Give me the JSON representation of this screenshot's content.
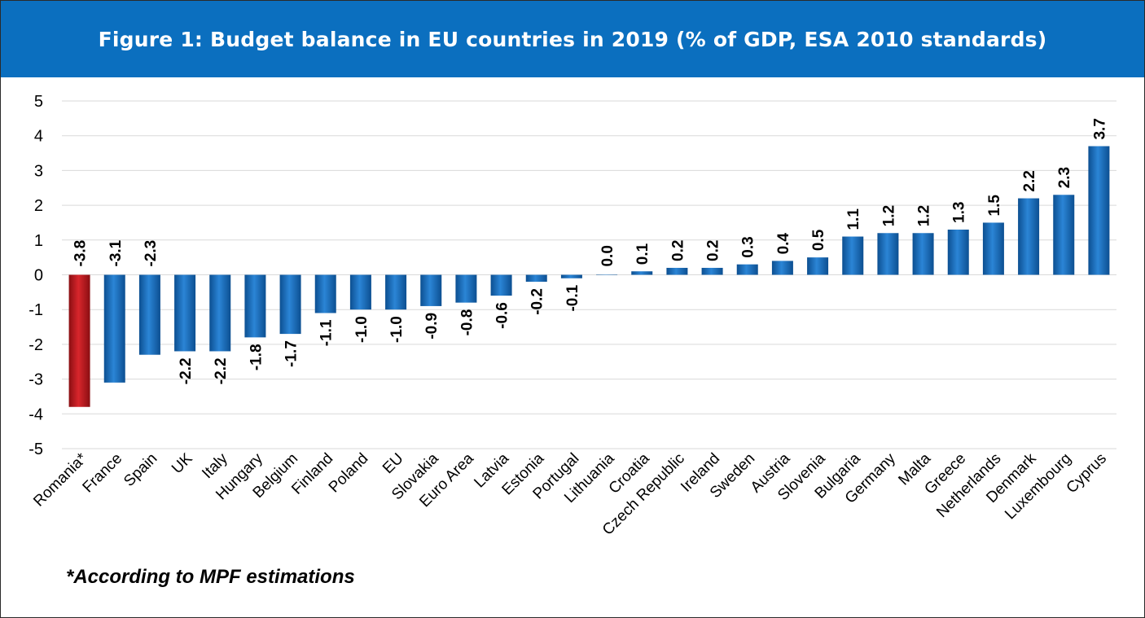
{
  "title": "Figure 1: Budget balance in EU countries in 2019 (% of GDP, ESA 2010 standards)",
  "footnote": "*According to MPF estimations",
  "colors": {
    "header_bg": "#0b6fbf",
    "bar": "#1a6fc0",
    "highlight_bar": "#c0171e",
    "grid": "#d9d9d9"
  },
  "chart_data": {
    "type": "bar",
    "title": "Figure 1: Budget balance in EU countries in 2019 (% of GDP, ESA 2010 standards)",
    "xlabel": "",
    "ylabel": "",
    "ylim": [
      -5,
      5
    ],
    "yticks": [
      5,
      4,
      3,
      2,
      1,
      0,
      -1,
      -2,
      -3,
      -4,
      -5
    ],
    "grid": true,
    "legend": "none",
    "highlight": "Romania*",
    "categories": [
      "Romania*",
      "France",
      "Spain",
      "UK",
      "Italy",
      "Hungary",
      "Belgium",
      "Finland",
      "Poland",
      "EU",
      "Slovakia",
      "Euro Area",
      "Latvia",
      "Estonia",
      "Portugal",
      "Lithuania",
      "Croatia",
      "Czech Republic",
      "Ireland",
      "Sweden",
      "Austria",
      "Slovenia",
      "Bulgaria",
      "Germany",
      "Malta",
      "Greece",
      "Netherlands",
      "Denmark",
      "Luxembourg",
      "Cyprus"
    ],
    "values": [
      -3.8,
      -3.1,
      -2.3,
      -2.2,
      -2.2,
      -1.8,
      -1.7,
      -1.1,
      -1.0,
      -1.0,
      -0.9,
      -0.8,
      -0.6,
      -0.2,
      -0.1,
      0.0,
      0.1,
      0.2,
      0.2,
      0.3,
      0.4,
      0.5,
      1.1,
      1.2,
      1.2,
      1.3,
      1.5,
      2.2,
      2.3,
      3.7
    ],
    "labels": [
      "-3.8",
      "-3.1",
      "-2.3",
      "-2.2",
      "-2.2",
      "-1.8",
      "-1.7",
      "-1.1",
      "-1.0",
      "-1.0",
      "-0.9",
      "-0.8",
      "-0.6",
      "-0.2",
      "-0.1",
      "0.0",
      "0.1",
      "0.2",
      "0.2",
      "0.3",
      "0.4",
      "0.5",
      "1.1",
      "1.2",
      "1.2",
      "1.3",
      "1.5",
      "2.2",
      "2.3",
      "3.7"
    ]
  }
}
